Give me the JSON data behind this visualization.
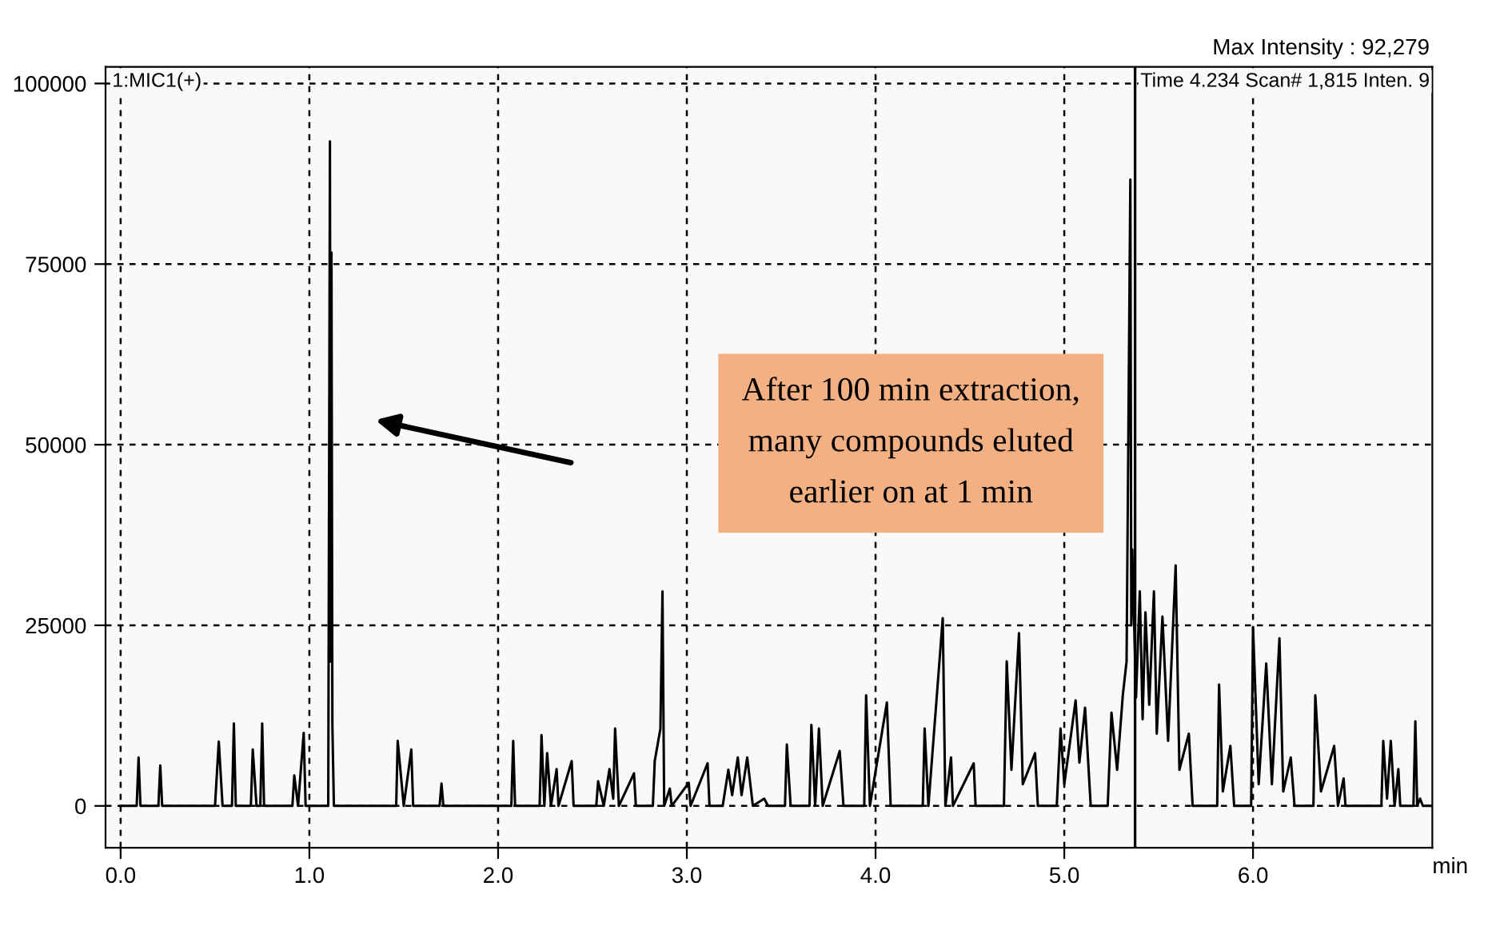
{
  "chart_data": {
    "type": "line",
    "xlabel": "min",
    "x": [
      0,
      0.085,
      0.095,
      0.105,
      0.2,
      0.21,
      0.22,
      0.5,
      0.52,
      0.54,
      0.59,
      0.6,
      0.61,
      0.69,
      0.7,
      0.72,
      0.74,
      0.75,
      0.76,
      0.91,
      0.92,
      0.94,
      0.97,
      0.98,
      1.1,
      1.109,
      1.112,
      1.117,
      1.122,
      1.13,
      1.46,
      1.468,
      1.5,
      1.54,
      1.55,
      1.69,
      1.7,
      1.71,
      2.07,
      2.08,
      2.09,
      2.22,
      2.23,
      2.245,
      2.26,
      2.28,
      2.31,
      2.32,
      2.39,
      2.4,
      2.52,
      2.53,
      2.56,
      2.59,
      2.61,
      2.62,
      2.64,
      2.72,
      2.73,
      2.82,
      2.83,
      2.86,
      2.871,
      2.88,
      2.91,
      2.92,
      3.01,
      3.02,
      3.11,
      3.12,
      3.19,
      3.22,
      3.24,
      3.27,
      3.29,
      3.32,
      3.35,
      3.41,
      3.43,
      3.52,
      3.53,
      3.55,
      3.65,
      3.66,
      3.68,
      3.7,
      3.72,
      3.81,
      3.83,
      3.94,
      3.95,
      3.97,
      4.06,
      4.08,
      4.25,
      4.26,
      4.28,
      4.356,
      4.37,
      4.4,
      4.41,
      4.52,
      4.53,
      4.68,
      4.695,
      4.72,
      4.76,
      4.78,
      4.845,
      4.86,
      4.96,
      4.98,
      5.0,
      5.06,
      5.08,
      5.11,
      5.14,
      5.23,
      5.25,
      5.28,
      5.31,
      5.33,
      5.35,
      5.355,
      5.36,
      5.38,
      5.4,
      5.415,
      5.43,
      5.45,
      5.475,
      5.49,
      5.52,
      5.55,
      5.59,
      5.61,
      5.66,
      5.68,
      5.81,
      5.82,
      5.84,
      5.88,
      5.9,
      5.99,
      6.0,
      6.03,
      6.07,
      6.1,
      6.14,
      6.16,
      6.2,
      6.22,
      6.32,
      6.33,
      6.36,
      6.43,
      6.45,
      6.48,
      6.49,
      6.68,
      6.69,
      6.71,
      6.73,
      6.75,
      6.77,
      6.78,
      6.85,
      6.86,
      6.87,
      6.885,
      6.9,
      6.95
    ],
    "series": [
      {
        "color": "#000000",
        "values": [
          0,
          0,
          6700,
          0,
          0,
          5600,
          0,
          0,
          8900,
          0,
          0,
          11400,
          0,
          0,
          7800,
          0,
          0,
          11400,
          0,
          0,
          4200,
          0,
          10100,
          0,
          0,
          92000,
          20000,
          76600,
          11000,
          0,
          0,
          9000,
          0,
          7800,
          0,
          0,
          3100,
          0,
          0,
          9000,
          0,
          0,
          9800,
          0,
          7300,
          0,
          5100,
          0,
          6200,
          0,
          0,
          3400,
          0,
          5100,
          1000,
          10700,
          0,
          4500,
          0,
          0,
          6200,
          10700,
          29700,
          0,
          2400,
          0,
          3200,
          0,
          5900,
          0,
          0,
          5000,
          1500,
          6700,
          1500,
          6700,
          0,
          1000,
          0,
          0,
          8500,
          0,
          0,
          11200,
          0,
          10700,
          0,
          7600,
          0,
          0,
          15300,
          0,
          14300,
          0,
          0,
          10700,
          0,
          26000,
          0,
          6700,
          0,
          5900,
          0,
          0,
          20000,
          5000,
          23900,
          3000,
          7300,
          0,
          0,
          10700,
          3000,
          14600,
          6000,
          13600,
          0,
          0,
          12900,
          5000,
          15300,
          20000,
          86700,
          25000,
          35500,
          15000,
          29700,
          12000,
          26800,
          14000,
          29700,
          10000,
          26200,
          9000,
          33300,
          5000,
          10000,
          0,
          0,
          16800,
          2000,
          8300,
          0,
          0,
          24700,
          3000,
          19700,
          3000,
          23200,
          2000,
          6700,
          0,
          0,
          15300,
          2000,
          8300,
          0,
          3800,
          0,
          0,
          9000,
          1000,
          9000,
          0,
          5100,
          0,
          0,
          11700,
          0,
          1000,
          0,
          0
        ]
      }
    ],
    "xlim": [
      -0.08,
      6.95
    ],
    "ylim": [
      -5800,
      102300
    ],
    "xticks": [
      {
        "value": 0,
        "label": "0.0"
      },
      {
        "value": 1,
        "label": "1.0"
      },
      {
        "value": 2,
        "label": "2.0"
      },
      {
        "value": 3,
        "label": "3.0"
      },
      {
        "value": 4,
        "label": "4.0"
      },
      {
        "value": 5,
        "label": "5.0"
      },
      {
        "value": 6,
        "label": "6.0"
      }
    ],
    "yticks": [
      0,
      25000,
      50000,
      75000,
      100000
    ],
    "grid": true,
    "marker": "none",
    "line_style": "solid",
    "ref_lines": [
      {
        "axis": "x",
        "value": 5.375,
        "color": "#000000",
        "line_style": "solid"
      }
    ],
    "annotations": [
      "After 100 min extraction,\nmany compounds eluted\nearlier on at 1 min",
      "1:MIC1(+)",
      "Time 4.234 Scan# 1,815 Inten. 9",
      "Max Intensity : 92,279"
    ]
  }
}
